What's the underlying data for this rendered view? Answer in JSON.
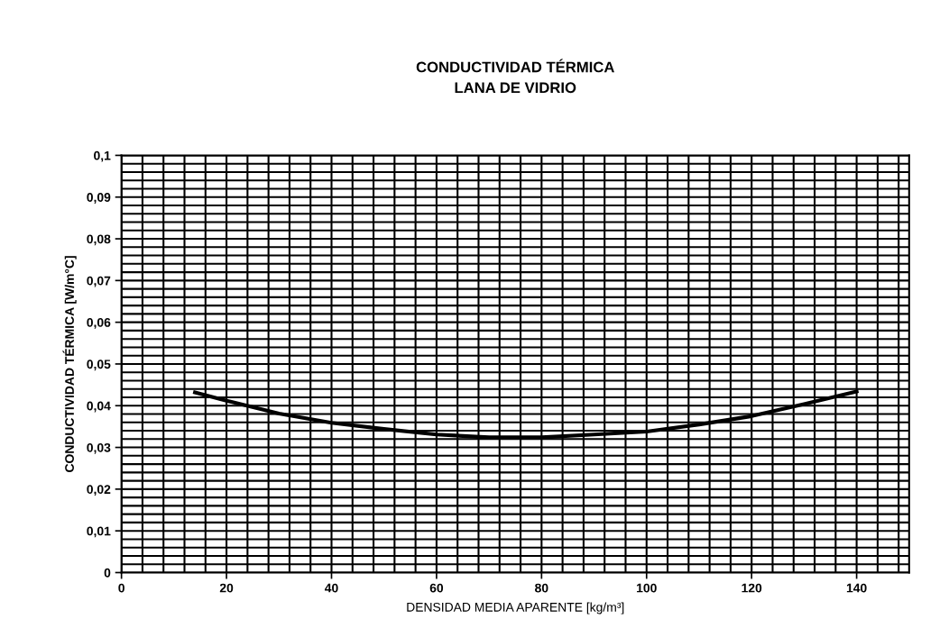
{
  "chart_data": {
    "type": "line",
    "title": "CONDUCTIVIDAD TÉRMICA\nLANA DE VIDRIO",
    "xlabel": "DENSIDAD MEDIA APARENTE [kg/m³]",
    "ylabel": "CONDUCTIVIDAD TÉRMICA [W/m°C]",
    "xlim": [
      0,
      150
    ],
    "xticks": [
      0,
      20,
      40,
      60,
      80,
      100,
      120,
      140
    ],
    "ylim": [
      0,
      0.1
    ],
    "yticks": [
      {
        "value": 0,
        "label": "0"
      },
      {
        "value": 0.01,
        "label": "0,01"
      },
      {
        "value": 0.02,
        "label": "0,02"
      },
      {
        "value": 0.03,
        "label": "0,03"
      },
      {
        "value": 0.04,
        "label": "0,04"
      },
      {
        "value": 0.05,
        "label": "0,05"
      },
      {
        "value": 0.06,
        "label": "0,06"
      },
      {
        "value": 0.07,
        "label": "0,07"
      },
      {
        "value": 0.08,
        "label": "0,08"
      },
      {
        "value": 0.09,
        "label": "0,09"
      },
      {
        "value": 0.1,
        "label": "0,1"
      }
    ],
    "grid": true,
    "marker": "none",
    "line_style": "solid",
    "series": [
      {
        "color": "#000000",
        "x": [
          14,
          20,
          30,
          40,
          50,
          60,
          70,
          80,
          90,
          100,
          110,
          120,
          130,
          140
        ],
        "values": [
          0.0432,
          0.0412,
          0.0381,
          0.0359,
          0.0344,
          0.0331,
          0.0324,
          0.0324,
          0.0331,
          0.0338,
          0.0355,
          0.0375,
          0.0404,
          0.0434
        ]
      }
    ]
  }
}
